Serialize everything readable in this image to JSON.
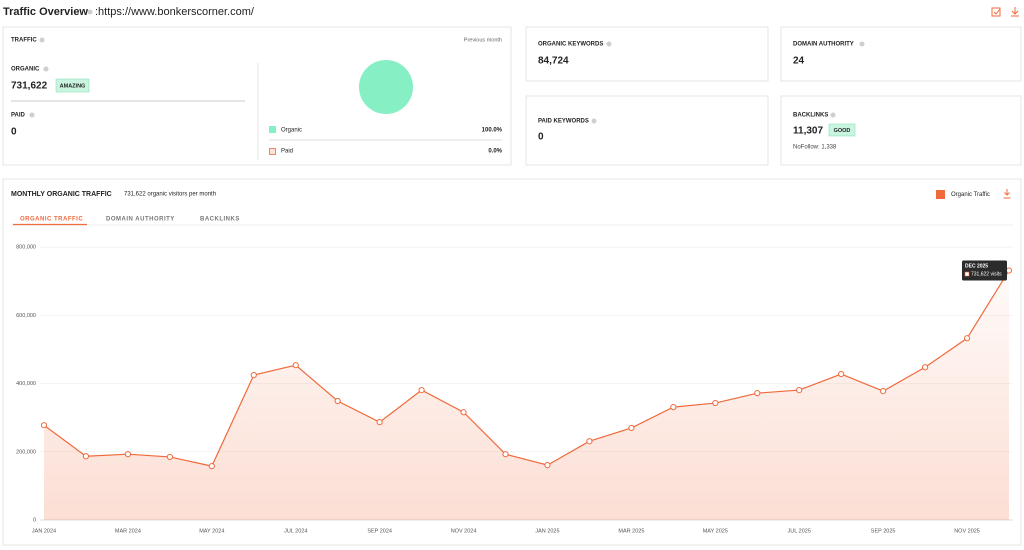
{
  "header": {
    "title": "Traffic Overview",
    "url": ":https://www.bonkerscorner.com/"
  },
  "traffic": {
    "title": "TRAFFIC",
    "period": "Previous month",
    "organic_label": "ORGANIC",
    "organic_value": "731,622",
    "organic_badge": "AMAZING",
    "paid_label": "PAID",
    "paid_value": "0",
    "legend": [
      {
        "label": "Organic",
        "value": "100.0%"
      },
      {
        "label": "Paid",
        "value": "0.0%"
      }
    ]
  },
  "organic_keywords": {
    "label": "ORGANIC KEYWORDS",
    "value": "84,724"
  },
  "domain_authority": {
    "label": "DOMAIN AUTHORITY",
    "value": "24"
  },
  "paid_keywords": {
    "label": "PAID KEYWORDS",
    "value": "0"
  },
  "backlinks": {
    "label": "BACKLINKS",
    "value": "11,307",
    "badge": "GOOD",
    "nofollow": "NoFollow: 1,338"
  },
  "tabs": [
    "ORGANIC TRAFFIC",
    "DOMAIN AUTHORITY",
    "BACKLINKS"
  ],
  "chart_data": {
    "type": "line",
    "title": "MONTHLY ORGANIC TRAFFIC",
    "subtitle": "731,622 organic visitors per month",
    "categories": [
      "JAN 2024",
      null,
      "MAR 2024",
      null,
      "MAY 2024",
      null,
      "JUL 2024",
      null,
      "SEP 2024",
      null,
      "NOV 2024",
      null,
      "JAN 2025",
      null,
      "MAR 2025",
      null,
      "MAY 2025",
      null,
      "JUL 2025",
      null,
      "SEP 2025",
      null,
      "NOV 2025",
      null
    ],
    "series": [
      {
        "name": "Organic Traffic",
        "color": "#f06a3c",
        "values": [
          278000,
          187000,
          193000,
          185000,
          158000,
          425000,
          454000,
          349000,
          287000,
          381000,
          316000,
          193000,
          161000,
          231000,
          270000,
          331000,
          343000,
          372000,
          381000,
          428000,
          378000,
          448000,
          533000,
          731622
        ]
      }
    ],
    "ylim": [
      0,
      830000
    ],
    "yticks": [
      0,
      {
        "value": 200000,
        "label": "200,000"
      },
      {
        "value": 400000,
        "label": "400,000"
      },
      {
        "value": 600000,
        "label": "600,000"
      },
      {
        "value": 800000,
        "label": "800,000"
      }
    ],
    "grid": true,
    "tooltip": {
      "title": "DEC 2025",
      "text": "731,622 visits"
    }
  }
}
